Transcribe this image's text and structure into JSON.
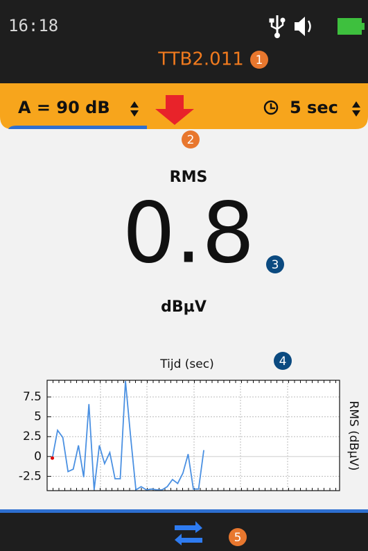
{
  "status_bar": {
    "time": "16:18"
  },
  "header": {
    "title": "TTB2.011"
  },
  "toolbar": {
    "gain": "A = 90 dB",
    "interval": "5 sec"
  },
  "reading": {
    "label": "RMS",
    "value": "0.8",
    "unit": "dBµV"
  },
  "chart": {
    "type": "line",
    "title": "Tijd (sec)",
    "y_label": "RMS (dBµV)",
    "color": "#4a90e2",
    "x": [
      1,
      2,
      3,
      4,
      5,
      6,
      7,
      8,
      9,
      10,
      11,
      12,
      13,
      14,
      15,
      16,
      17,
      18,
      19,
      20,
      21,
      22,
      23,
      24,
      25,
      26,
      27,
      28,
      29,
      30
    ],
    "values": [
      -0.2,
      3.3,
      2.4,
      -1.9,
      -1.6,
      1.4,
      -2.6,
      6.6,
      -4.2,
      1.4,
      -0.9,
      0.5,
      -2.8,
      -2.8,
      9.5,
      2.4,
      -4.2,
      -3.8,
      -4.2,
      -4.1,
      -4.2,
      -4.2,
      -3.8,
      -2.9,
      -3.4,
      -2.1,
      0.3,
      -4.1,
      -4.1,
      0.8
    ],
    "xlim": [
      0,
      56
    ],
    "ylim": [
      -4.3,
      9.6
    ],
    "yticks": [
      7.5,
      5,
      2.5,
      0,
      -2.5
    ],
    "grid": true
  },
  "badges": [
    "1",
    "2",
    "3",
    "4",
    "5"
  ]
}
